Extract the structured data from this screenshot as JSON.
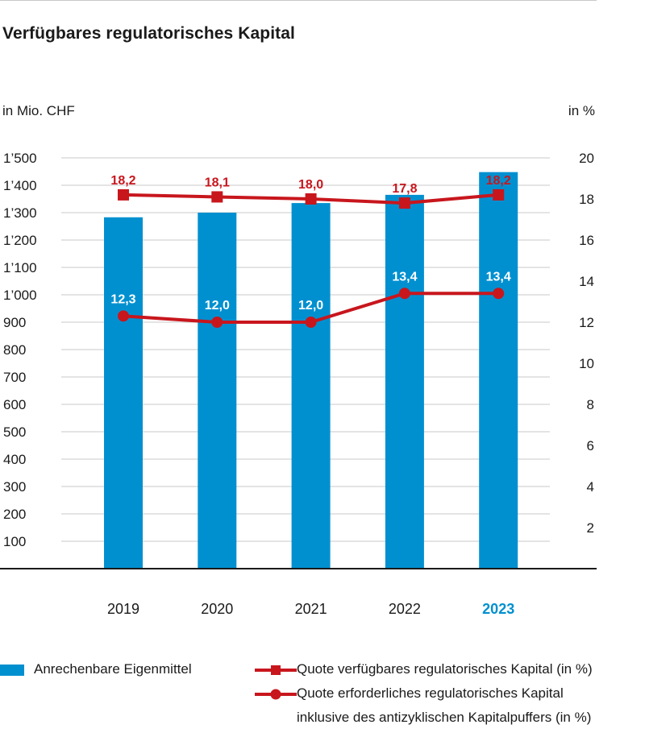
{
  "title": "Verfügbares regulatorisches Kapital",
  "left_unit": "in Mio. CHF",
  "right_unit": "in %",
  "colors": {
    "bar": "#0090d0",
    "line": "#c8161d",
    "highlight": "#0090d0",
    "grid": "#c8c8c8"
  },
  "chart_data": {
    "type": "bar",
    "categories": [
      "2019",
      "2020",
      "2021",
      "2022",
      "2023"
    ],
    "highlight_category": "2023",
    "ylim_left": [
      0,
      1500
    ],
    "ylim_right": [
      0,
      20
    ],
    "yticks_left": [
      "100",
      "200",
      "300",
      "400",
      "500",
      "600",
      "700",
      "800",
      "900",
      "1’000",
      "1’100",
      "1’200",
      "1’300",
      "1’400",
      "1’500"
    ],
    "yticks_right": [
      "2",
      "4",
      "6",
      "8",
      "10",
      "12",
      "14",
      "16",
      "18",
      "20"
    ],
    "grid": true,
    "series": [
      {
        "name": "Anrechenbare Eigenmittel",
        "type": "bar",
        "axis": "left",
        "values": [
          1283,
          1300,
          1335,
          1365,
          1448
        ]
      },
      {
        "name": "Quote verfügbares regulatorisches Kapital (in %)",
        "type": "line",
        "marker": "square",
        "axis": "right",
        "values": [
          18.2,
          18.1,
          18.0,
          17.8,
          18.2
        ],
        "labels": [
          "18,2",
          "18,1",
          "18,0",
          "17,8",
          "18,2"
        ]
      },
      {
        "name": "Quote erforderliches regulatorisches Kapital inklusive des antizyklischen Kapitalpuffers (in %)",
        "legend_lines": [
          "Quote erforderliches regulatorisches Kapital",
          "inklusive des antizyklischen Kapitalpuffers (in %)"
        ],
        "type": "line",
        "marker": "circle",
        "axis": "right",
        "values": [
          12.3,
          12.0,
          12.0,
          13.4,
          13.4
        ],
        "labels": [
          "12,3",
          "12,0",
          "12,0",
          "13,4",
          "13,4"
        ]
      }
    ]
  }
}
